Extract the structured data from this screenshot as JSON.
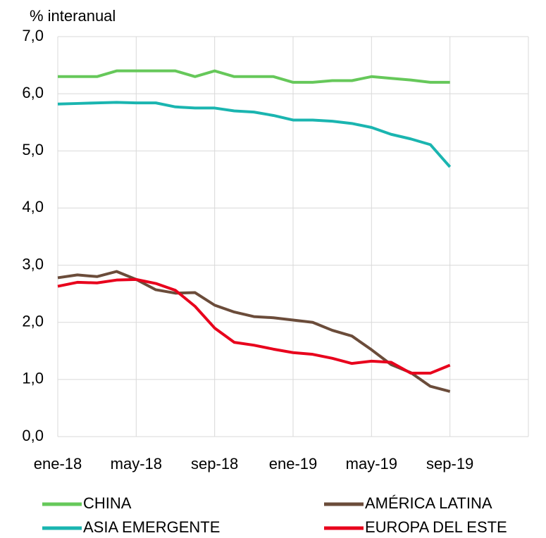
{
  "chart_data": {
    "type": "line",
    "y_axis_label": "% interanual",
    "categories": [
      "ene-18",
      null,
      null,
      null,
      "may-18",
      null,
      null,
      null,
      "sep-18",
      null,
      null,
      null,
      "ene-19",
      null,
      null,
      null,
      "may-19",
      null,
      null,
      null,
      "sep-19",
      null,
      null,
      null,
      null
    ],
    "series": [
      {
        "name": "CHINA",
        "color": "#66c85a",
        "values": [
          6.3,
          6.3,
          6.3,
          6.4,
          6.4,
          6.4,
          6.4,
          6.3,
          6.4,
          6.3,
          6.3,
          6.3,
          6.2,
          6.2,
          6.23,
          6.23,
          6.3,
          6.27,
          6.24,
          6.2,
          6.2,
          null,
          null,
          null,
          null
        ]
      },
      {
        "name": "AMÉRICA LATINA",
        "color": "#6b4c3a",
        "values": [
          2.78,
          2.83,
          2.8,
          2.89,
          2.75,
          2.57,
          2.51,
          2.52,
          2.3,
          2.18,
          2.1,
          2.08,
          2.04,
          2.0,
          1.86,
          1.76,
          1.52,
          1.26,
          1.12,
          0.88,
          0.79,
          null,
          null,
          null,
          null
        ]
      },
      {
        "name": "ASIA EMERGENTE",
        "color": "#1ab5b0",
        "values": [
          5.82,
          5.83,
          5.84,
          5.85,
          5.84,
          5.84,
          5.77,
          5.75,
          5.75,
          5.7,
          5.68,
          5.62,
          5.54,
          5.54,
          5.52,
          5.48,
          5.41,
          5.29,
          5.21,
          5.11,
          4.72,
          null,
          null,
          null,
          null
        ]
      },
      {
        "name": "EUROPA DEL ESTE",
        "color": "#e8001c",
        "values": [
          2.63,
          2.7,
          2.69,
          2.74,
          2.75,
          2.68,
          2.56,
          2.28,
          1.9,
          1.65,
          1.6,
          1.53,
          1.47,
          1.44,
          1.37,
          1.28,
          1.32,
          1.3,
          1.11,
          1.11,
          1.25,
          null,
          null,
          null,
          null
        ]
      }
    ],
    "ylim": [
      0,
      7
    ],
    "yticks": [
      {
        "value": 0,
        "label": "0,0"
      },
      {
        "value": 1,
        "label": "1,0"
      },
      {
        "value": 2,
        "label": "2,0"
      },
      {
        "value": 3,
        "label": "3,0"
      },
      {
        "value": 4,
        "label": "4,0"
      },
      {
        "value": 5,
        "label": "5,0"
      },
      {
        "value": 6,
        "label": "6,0"
      },
      {
        "value": 7,
        "label": "7,0"
      }
    ],
    "grid": true,
    "legend": "bottom"
  }
}
